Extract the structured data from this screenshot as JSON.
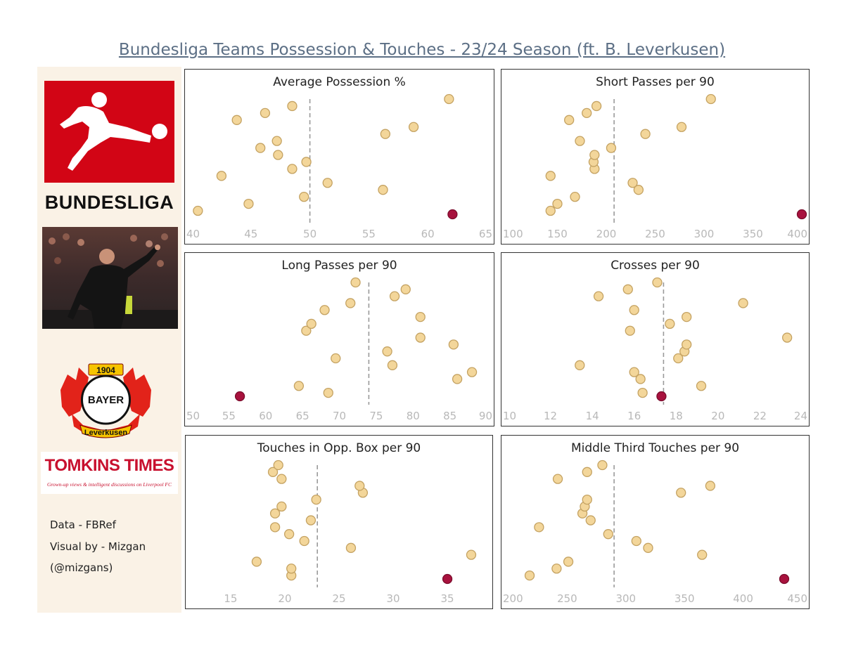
{
  "title": "Bundesliga Teams Possession & Touches - 23/24 Season (ft. B. Leverkusen)",
  "sidebar": {
    "league_name": "BUNDESLIGA",
    "crest": {
      "year": "1904",
      "word": "BAYER",
      "club": "Leverkusen"
    },
    "partner": {
      "name": "TOMKINS TIMES",
      "tagline": "Grown-up views & intelligent discussions on Liverpool FC"
    },
    "credits": [
      "Data - FBRef",
      "Visual by - Mizgan",
      "(@mizgans)"
    ]
  },
  "colors": {
    "dot_fill": "#f3d69a",
    "dot_stroke": "#c4a262",
    "highlight": "#a8123e",
    "average_line": "#9a9a9a",
    "title": "#5c6f85",
    "league_red": "#d20515"
  },
  "chart_data": [
    {
      "type": "scatter",
      "title": "Average Possession %",
      "xlim": [
        40,
        65
      ],
      "ticks": [
        "40",
        "45",
        "50",
        "55",
        "60",
        "65"
      ],
      "average": 50,
      "points": [
        {
          "x": 40.5,
          "y": 1
        },
        {
          "x": 44.8,
          "y": 2
        },
        {
          "x": 49.5,
          "y": 3
        },
        {
          "x": 56.2,
          "y": 4
        },
        {
          "x": 51.5,
          "y": 5
        },
        {
          "x": 42.5,
          "y": 6
        },
        {
          "x": 48.5,
          "y": 7
        },
        {
          "x": 49.7,
          "y": 8
        },
        {
          "x": 47.3,
          "y": 9
        },
        {
          "x": 45.8,
          "y": 10
        },
        {
          "x": 47.2,
          "y": 11
        },
        {
          "x": 56.4,
          "y": 12
        },
        {
          "x": 58.8,
          "y": 13
        },
        {
          "x": 43.8,
          "y": 14
        },
        {
          "x": 46.2,
          "y": 15
        },
        {
          "x": 48.5,
          "y": 16
        },
        {
          "x": 61.8,
          "y": 17
        }
      ],
      "highlight": {
        "x": 62.1,
        "y": 0.5
      }
    },
    {
      "type": "scatter",
      "title": "Short Passes per 90",
      "xlim": [
        100,
        400
      ],
      "ticks": [
        "100",
        "150",
        "200",
        "250",
        "300",
        "350",
        "400"
      ],
      "average": 208,
      "points": [
        {
          "x": 143,
          "y": 1
        },
        {
          "x": 150,
          "y": 2
        },
        {
          "x": 168,
          "y": 3
        },
        {
          "x": 233,
          "y": 4
        },
        {
          "x": 227,
          "y": 5
        },
        {
          "x": 143,
          "y": 6
        },
        {
          "x": 188,
          "y": 7
        },
        {
          "x": 187,
          "y": 8
        },
        {
          "x": 188,
          "y": 9
        },
        {
          "x": 205,
          "y": 10
        },
        {
          "x": 173,
          "y": 11
        },
        {
          "x": 240,
          "y": 12
        },
        {
          "x": 277,
          "y": 13
        },
        {
          "x": 162,
          "y": 14
        },
        {
          "x": 180,
          "y": 15
        },
        {
          "x": 190,
          "y": 16
        },
        {
          "x": 307,
          "y": 17
        }
      ],
      "highlight": {
        "x": 400,
        "y": 0.5
      }
    },
    {
      "type": "scatter",
      "title": "Long Passes per 90",
      "xlim": [
        50,
        90
      ],
      "ticks": [
        "50",
        "55",
        "60",
        "65",
        "70",
        "75",
        "80",
        "85",
        "90"
      ],
      "average": 74,
      "points": [
        {
          "x": 68.5,
          "y": 1
        },
        {
          "x": 64.5,
          "y": 2
        },
        {
          "x": 86,
          "y": 3
        },
        {
          "x": 88,
          "y": 4
        },
        {
          "x": 77.2,
          "y": 5
        },
        {
          "x": 69.5,
          "y": 6
        },
        {
          "x": 76.5,
          "y": 7
        },
        {
          "x": 85.5,
          "y": 8
        },
        {
          "x": 81,
          "y": 9
        },
        {
          "x": 65.5,
          "y": 10
        },
        {
          "x": 66.2,
          "y": 11
        },
        {
          "x": 81,
          "y": 12
        },
        {
          "x": 68,
          "y": 13
        },
        {
          "x": 71.5,
          "y": 14
        },
        {
          "x": 77.5,
          "y": 15
        },
        {
          "x": 79,
          "y": 16
        },
        {
          "x": 72.2,
          "y": 17
        }
      ],
      "highlight": {
        "x": 56.5,
        "y": 0.5
      }
    },
    {
      "type": "scatter",
      "title": "Crosses per 90",
      "xlim": [
        10,
        24
      ],
      "ticks": [
        "10",
        "12",
        "14",
        "16",
        "18",
        "20",
        "22",
        "24"
      ],
      "average": 17.4,
      "points": [
        {
          "x": 16.4,
          "y": 1
        },
        {
          "x": 19.2,
          "y": 2
        },
        {
          "x": 16.3,
          "y": 3
        },
        {
          "x": 16,
          "y": 4
        },
        {
          "x": 13.4,
          "y": 5
        },
        {
          "x": 18.1,
          "y": 6
        },
        {
          "x": 18.4,
          "y": 7
        },
        {
          "x": 18.5,
          "y": 8
        },
        {
          "x": 23.3,
          "y": 9
        },
        {
          "x": 15.8,
          "y": 10
        },
        {
          "x": 17.7,
          "y": 11
        },
        {
          "x": 18.5,
          "y": 12
        },
        {
          "x": 16,
          "y": 13
        },
        {
          "x": 21.2,
          "y": 14
        },
        {
          "x": 14.3,
          "y": 15
        },
        {
          "x": 15.7,
          "y": 16
        },
        {
          "x": 17.1,
          "y": 17
        }
      ],
      "highlight": {
        "x": 17.3,
        "y": 0.5
      }
    },
    {
      "type": "scatter",
      "title": "Touches in Opp. Box per 90",
      "xlim": [
        11.5,
        38.5
      ],
      "ticks": [
        "15",
        "20",
        "25",
        "30",
        "35"
      ],
      "tick_values": [
        15,
        20,
        25,
        30,
        35
      ],
      "average": 23,
      "points": [
        {
          "x": 20.6,
          "y": 1
        },
        {
          "x": 20.6,
          "y": 2
        },
        {
          "x": 17.4,
          "y": 3
        },
        {
          "x": 37.2,
          "y": 4
        },
        {
          "x": 26.1,
          "y": 5
        },
        {
          "x": 21.8,
          "y": 6
        },
        {
          "x": 20.4,
          "y": 7
        },
        {
          "x": 19.1,
          "y": 8
        },
        {
          "x": 22.4,
          "y": 9
        },
        {
          "x": 19.1,
          "y": 10
        },
        {
          "x": 19.7,
          "y": 11
        },
        {
          "x": 22.9,
          "y": 12
        },
        {
          "x": 27.2,
          "y": 13
        },
        {
          "x": 26.9,
          "y": 14
        },
        {
          "x": 19.7,
          "y": 15
        },
        {
          "x": 18.9,
          "y": 16
        },
        {
          "x": 19.4,
          "y": 17
        }
      ],
      "highlight": {
        "x": 35,
        "y": 0.5
      }
    },
    {
      "type": "scatter",
      "title": "Middle Third Touches per 90",
      "xlim": [
        200,
        450
      ],
      "ticks": [
        "200",
        "250",
        "300",
        "350",
        "400",
        "450"
      ],
      "average": 290,
      "points": [
        {
          "x": 218,
          "y": 1
        },
        {
          "x": 241,
          "y": 2
        },
        {
          "x": 251,
          "y": 3
        },
        {
          "x": 365,
          "y": 4
        },
        {
          "x": 319,
          "y": 5
        },
        {
          "x": 309,
          "y": 6
        },
        {
          "x": 285,
          "y": 7
        },
        {
          "x": 226,
          "y": 8
        },
        {
          "x": 270,
          "y": 9
        },
        {
          "x": 263,
          "y": 10
        },
        {
          "x": 265,
          "y": 11
        },
        {
          "x": 267,
          "y": 12
        },
        {
          "x": 347,
          "y": 13
        },
        {
          "x": 372,
          "y": 14
        },
        {
          "x": 242,
          "y": 15
        },
        {
          "x": 267,
          "y": 16
        },
        {
          "x": 280,
          "y": 17
        }
      ],
      "highlight": {
        "x": 435,
        "y": 0.5
      }
    }
  ]
}
